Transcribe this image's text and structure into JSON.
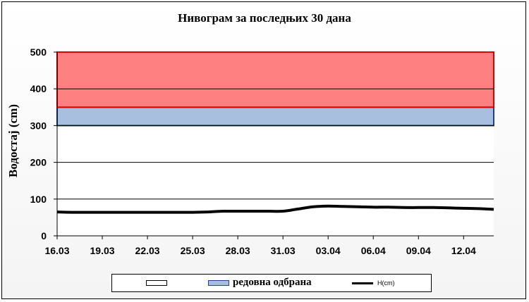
{
  "chart_data": {
    "type": "line",
    "title": "Нивограм за последњих 30 дана",
    "ylabel": "Водостај (cm)",
    "xlabel": "",
    "ylim": [
      0,
      500
    ],
    "yticks": [
      "0",
      "100",
      "200",
      "300",
      "400",
      "500"
    ],
    "xticks": [
      "16.03",
      "19.03",
      "22.03",
      "25.03",
      "28.03",
      "31.03",
      "03.04",
      "06.04",
      "09.04",
      "12.04"
    ],
    "grid": true,
    "bands": [
      {
        "from": 300,
        "to": 350,
        "color": "#a9bfdf",
        "border": "#1f3f8f"
      },
      {
        "from": 350,
        "to": 500,
        "color": "#ff8080",
        "border": "#dd0000"
      }
    ],
    "series": [
      {
        "name": "H(cm)",
        "color": "#000000",
        "x": [
          "16.03",
          "17.03",
          "18.03",
          "19.03",
          "20.03",
          "21.03",
          "22.03",
          "23.03",
          "24.03",
          "25.03",
          "26.03",
          "27.03",
          "28.03",
          "29.03",
          "30.03",
          "31.03",
          "01.04",
          "02.04",
          "03.04",
          "04.04",
          "05.04",
          "06.04",
          "07.04",
          "08.04",
          "09.04",
          "10.04",
          "11.04",
          "12.04",
          "13.04",
          "14.04"
        ],
        "values": [
          65,
          64,
          64,
          64,
          64,
          64,
          64,
          64,
          64,
          64,
          65,
          67,
          67,
          67,
          67,
          67,
          73,
          79,
          81,
          80,
          79,
          78,
          78,
          77,
          77,
          77,
          76,
          75,
          74,
          72
        ]
      }
    ],
    "legend": {
      "position": "bottom",
      "items": [
        {
          "label": "",
          "color": "#ffffff"
        },
        {
          "label": "редовна одбрана",
          "color": "#a9bfdf"
        },
        {
          "label": "H(cm)",
          "color": "#000000"
        }
      ]
    }
  }
}
